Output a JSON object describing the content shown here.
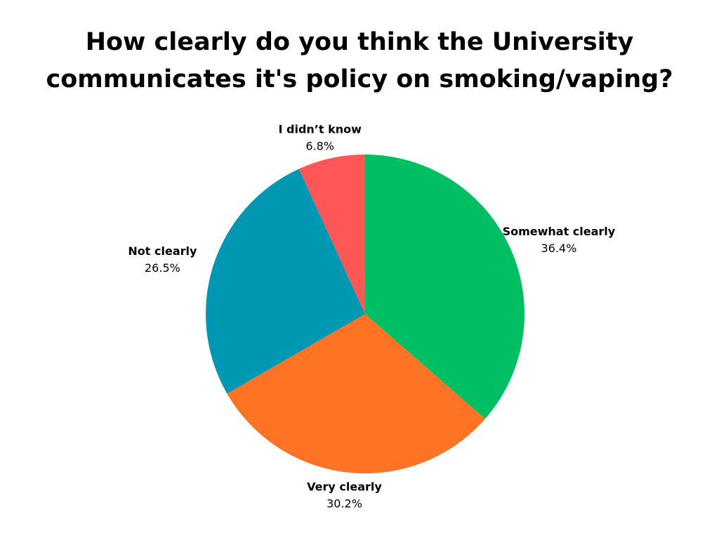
{
  "chart_data": {
    "type": "pie",
    "title": "How clearly do you think the University communicates it's policy on smoking/vaping?",
    "categories": [
      "Somewhat clearly",
      "Very clearly",
      "Not clearly",
      "I didn’t know"
    ],
    "values": [
      36.4,
      30.2,
      26.5,
      6.8
    ],
    "value_labels": [
      "36.4%",
      "30.2%",
      "26.5%",
      "6.8%"
    ],
    "colors": [
      "#00bf63",
      "#ff7424",
      "#0097b2",
      "#ff5757"
    ]
  }
}
